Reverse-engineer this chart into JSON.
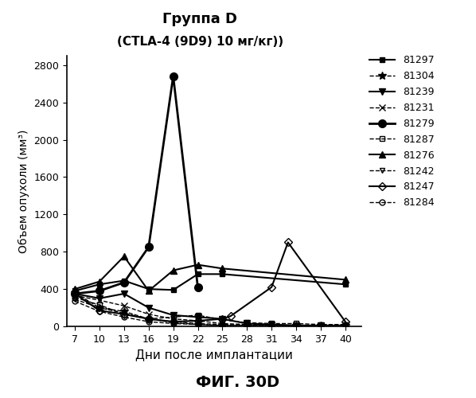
{
  "title_line1": "Группа D",
  "title_line2": "(CTLA-4 (9D9) 10 мг/кг))",
  "xlabel": "Дни после имплантации",
  "ylabel": "Объем опухоли (мм³)",
  "caption": "ФИГ. 30D",
  "xticks": [
    7,
    10,
    13,
    16,
    19,
    22,
    25,
    28,
    31,
    34,
    37,
    40
  ],
  "yticks": [
    0,
    400,
    800,
    1200,
    1600,
    2000,
    2400,
    2800
  ],
  "ylim": [
    0,
    2900
  ],
  "xlim": [
    6,
    42
  ],
  "series": [
    {
      "label": "81297",
      "color": "#000000",
      "marker": "s",
      "markersize": 5,
      "linestyle": "-",
      "linewidth": 1.5,
      "fillstyle": "full",
      "x": [
        7,
        10,
        13,
        16,
        19,
        22,
        25,
        40
      ],
      "y": [
        380,
        450,
        490,
        400,
        390,
        560,
        560,
        450
      ]
    },
    {
      "label": "81304",
      "color": "#000000",
      "marker": "*",
      "markersize": 7,
      "linestyle": "--",
      "linewidth": 1.0,
      "fillstyle": "full",
      "x": [
        7,
        10,
        13,
        16,
        19,
        22,
        25,
        28,
        31,
        34,
        37,
        40
      ],
      "y": [
        360,
        200,
        160,
        80,
        40,
        20,
        10,
        10,
        10,
        10,
        10,
        10
      ]
    },
    {
      "label": "81239",
      "color": "#000000",
      "marker": "v",
      "markersize": 6,
      "linestyle": "-",
      "linewidth": 1.5,
      "fillstyle": "full",
      "x": [
        7,
        10,
        13,
        16,
        19,
        22,
        25,
        28,
        31,
        34,
        37,
        40
      ],
      "y": [
        350,
        300,
        350,
        200,
        120,
        100,
        80,
        30,
        20,
        10,
        10,
        10
      ]
    },
    {
      "label": "81231",
      "color": "#000000",
      "marker": "x",
      "markersize": 6,
      "linestyle": "--",
      "linewidth": 1.0,
      "fillstyle": "full",
      "x": [
        7,
        10,
        13,
        16,
        19,
        22,
        25,
        28,
        31,
        34,
        37,
        40
      ],
      "y": [
        330,
        280,
        220,
        130,
        80,
        60,
        30,
        20,
        15,
        10,
        10,
        10
      ]
    },
    {
      "label": "81279",
      "color": "#000000",
      "marker": "o",
      "markersize": 7,
      "linestyle": "-",
      "linewidth": 2.0,
      "fillstyle": "full",
      "x": [
        7,
        10,
        13,
        16,
        19,
        22
      ],
      "y": [
        350,
        380,
        470,
        850,
        2680,
        420
      ]
    },
    {
      "label": "81287",
      "color": "#000000",
      "marker": "s",
      "markersize": 5,
      "linestyle": "--",
      "linewidth": 1.0,
      "fillstyle": "none",
      "x": [
        7,
        10,
        13,
        16,
        19,
        22,
        25,
        28,
        31,
        34,
        37,
        40
      ],
      "y": [
        310,
        230,
        130,
        80,
        100,
        120,
        70,
        40,
        30,
        30,
        20,
        20
      ]
    },
    {
      "label": "81276",
      "color": "#000000",
      "marker": "^",
      "markersize": 6,
      "linestyle": "-",
      "linewidth": 1.5,
      "fillstyle": "full",
      "x": [
        7,
        10,
        13,
        16,
        19,
        22,
        25,
        40
      ],
      "y": [
        400,
        480,
        750,
        380,
        600,
        660,
        620,
        500
      ]
    },
    {
      "label": "81242",
      "color": "#000000",
      "marker": "v",
      "markersize": 5,
      "linestyle": "--",
      "linewidth": 1.0,
      "fillstyle": "none",
      "x": [
        7,
        10,
        13,
        16,
        19,
        22,
        25,
        28,
        31,
        34,
        37,
        40
      ],
      "y": [
        290,
        200,
        140,
        80,
        50,
        30,
        20,
        15,
        10,
        10,
        10,
        10
      ]
    },
    {
      "label": "81247",
      "color": "#000000",
      "marker": "D",
      "markersize": 5,
      "linestyle": "-",
      "linewidth": 1.5,
      "fillstyle": "none",
      "x": [
        7,
        10,
        13,
        16,
        19,
        22,
        25,
        26,
        31,
        33,
        40
      ],
      "y": [
        350,
        170,
        130,
        80,
        50,
        60,
        80,
        110,
        420,
        900,
        50
      ]
    },
    {
      "label": "81284",
      "color": "#000000",
      "marker": "o",
      "markersize": 5,
      "linestyle": "--",
      "linewidth": 1.0,
      "fillstyle": "none",
      "x": [
        7,
        10,
        13,
        16,
        19,
        22,
        25,
        28,
        31,
        34,
        37,
        40
      ],
      "y": [
        270,
        160,
        100,
        50,
        30,
        20,
        10,
        10,
        10,
        10,
        10,
        10
      ]
    }
  ]
}
